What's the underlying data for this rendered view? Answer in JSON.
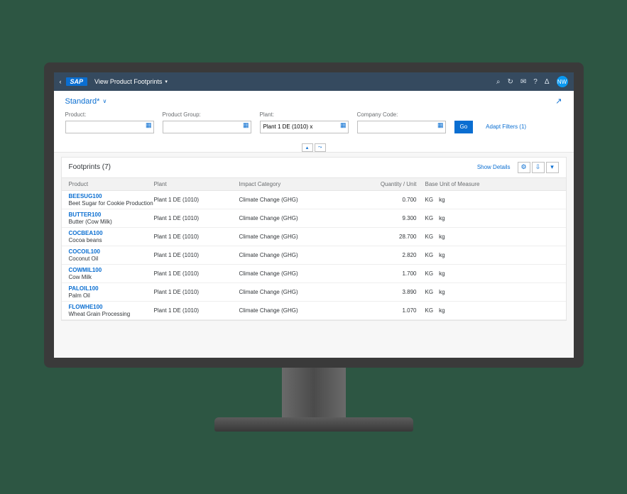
{
  "header": {
    "logo_text": "SAP",
    "page_title": "View Product Footprints",
    "avatar_initials": "NW"
  },
  "variant": {
    "name": "Standard*"
  },
  "filters": {
    "product": {
      "label": "Product:",
      "value": ""
    },
    "product_group": {
      "label": "Product Group:",
      "value": ""
    },
    "plant": {
      "label": "Plant:",
      "value": "Plant 1 DE (1010) x"
    },
    "company_code": {
      "label": "Company Code:",
      "value": ""
    },
    "go_label": "Go",
    "adapt_filters_label": "Adapt Filters (1)"
  },
  "table": {
    "title": "Footprints (7)",
    "show_details_label": "Show Details",
    "columns": {
      "product": "Product",
      "plant": "Plant",
      "impact": "Impact Category",
      "qty": "Quantity / Unit",
      "uom": "Base Unit of Measure"
    },
    "rows": [
      {
        "code": "BEESUG100",
        "desc": "Beet Sugar for Cookie Production",
        "plant": "Plant 1 DE (1010)",
        "impact": "Climate Change (GHG)",
        "qty": "0.700",
        "uom_code": "KG",
        "uom_text": "kg"
      },
      {
        "code": "BUTTER100",
        "desc": "Butter (Cow Milk)",
        "plant": "Plant 1 DE (1010)",
        "impact": "Climate Change (GHG)",
        "qty": "9.300",
        "uom_code": "KG",
        "uom_text": "kg"
      },
      {
        "code": "COCBEA100",
        "desc": "Cocoa beans",
        "plant": "Plant 1 DE (1010)",
        "impact": "Climate Change (GHG)",
        "qty": "28.700",
        "uom_code": "KG",
        "uom_text": "kg"
      },
      {
        "code": "COCOIL100",
        "desc": "Coconut Oil",
        "plant": "Plant 1 DE (1010)",
        "impact": "Climate Change (GHG)",
        "qty": "2.820",
        "uom_code": "KG",
        "uom_text": "kg"
      },
      {
        "code": "COWMIL100",
        "desc": "Cow Milk",
        "plant": "Plant 1 DE (1010)",
        "impact": "Climate Change (GHG)",
        "qty": "1.700",
        "uom_code": "KG",
        "uom_text": "kg"
      },
      {
        "code": "PALOIL100",
        "desc": "Palm Oil",
        "plant": "Plant 1 DE (1010)",
        "impact": "Climate Change (GHG)",
        "qty": "3.890",
        "uom_code": "KG",
        "uom_text": "kg"
      },
      {
        "code": "FLOWHE100",
        "desc": "Wheat Grain Processing",
        "plant": "Plant 1 DE (1010)",
        "impact": "Climate Change (GHG)",
        "qty": "1.070",
        "uom_code": "KG",
        "uom_text": "kg"
      }
    ]
  },
  "colors": {
    "header_bg": "#354a5f",
    "accent": "#0a6ed1",
    "page_bg": "#f7f7f7",
    "text": "#32363a",
    "muted": "#6a6d70"
  }
}
